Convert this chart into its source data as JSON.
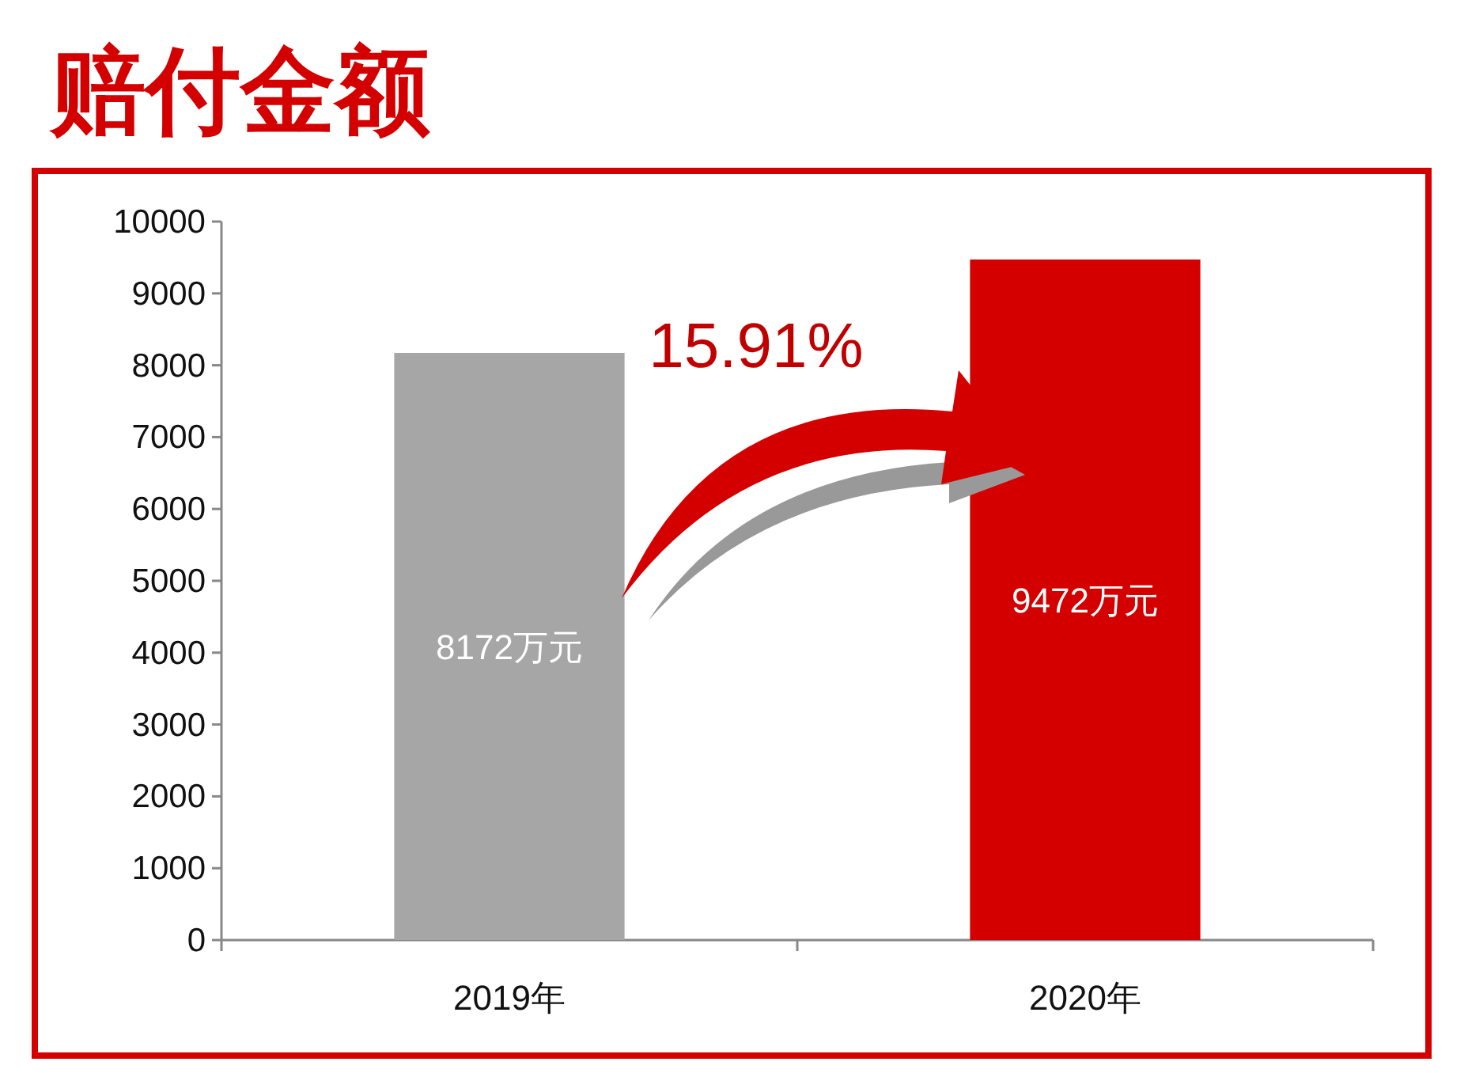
{
  "chart_data": {
    "type": "bar",
    "title": "赔付金额",
    "categories": [
      "2019年",
      "2020年"
    ],
    "values": [
      8172,
      9472
    ],
    "colors": [
      "#a6a6a6",
      "#d40000"
    ],
    "value_labels": [
      "8172万元",
      "9472万元"
    ],
    "ylim": [
      0,
      10000
    ],
    "yticks": [
      0,
      1000,
      2000,
      3000,
      4000,
      5000,
      6000,
      7000,
      8000,
      9000,
      10000
    ],
    "annotations": [
      "15.91%"
    ]
  }
}
